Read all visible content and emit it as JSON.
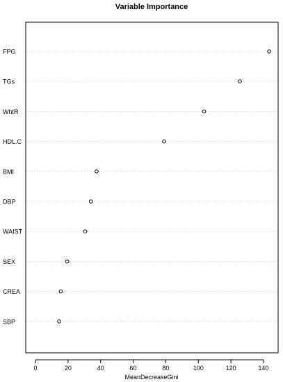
{
  "chart_data": {
    "type": "scatter",
    "title": "Variable Importance",
    "xlabel": "MeanDecreaseGini",
    "ylabel": "",
    "xlim": [
      -6,
      149
    ],
    "x_ticks": [
      0,
      20,
      40,
      60,
      80,
      100,
      120,
      140
    ],
    "grid": "dotted horizontal guide per category",
    "categories": [
      "FPG",
      "TGs",
      "WhtR",
      "HDL.C",
      "BMI",
      "DBP",
      "WAIST",
      "SEX",
      "CREA",
      "SBP"
    ],
    "values": [
      143.5,
      125.5,
      103.5,
      79,
      37.5,
      34,
      30.5,
      19.5,
      15.5,
      14.5
    ]
  }
}
